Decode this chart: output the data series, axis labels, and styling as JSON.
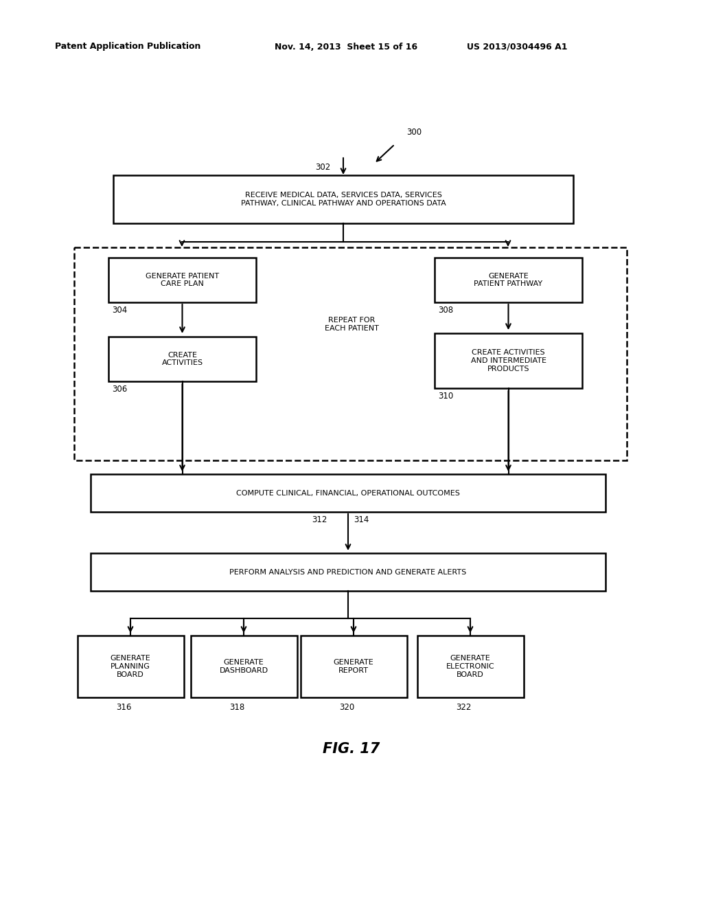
{
  "bg_color": "#ffffff",
  "header_line1": "Patent Application Publication",
  "header_line2": "Nov. 14, 2013  Sheet 15 of 16",
  "header_line3": "US 2013/0304496 A1",
  "fig_label": "FIG. 17",
  "label_300": "300",
  "label_302": "302",
  "label_304": "304",
  "label_306": "306",
  "label_308": "308",
  "label_310": "310",
  "label_312": "312",
  "label_314": "314",
  "label_316": "316",
  "label_318": "318",
  "label_320": "320",
  "label_322": "322",
  "box_302_text": "RECEIVE MEDICAL DATA, SERVICES DATA, SERVICES\nPATHWAY, CLINICAL PATHWAY AND OPERATIONS DATA",
  "box_left_top_text": "GENERATE PATIENT\nCARE PLAN",
  "box_304_text": "CREATE\nACTIVITIES",
  "box_right_top_text": "GENERATE\nPATIENT PATHWAY",
  "box_308_text": "CREATE ACTIVITIES\nAND INTERMEDIATE\nPRODUCTS",
  "box_compute_text": "COMPUTE CLINICAL, FINANCIAL, OPERATIONAL OUTCOMES",
  "box_perform_text": "PERFORM ANALYSIS AND PREDICTION AND GENERATE ALERTS",
  "repeat_text": "REPEAT FOR\nEACH PATIENT",
  "box_316_text": "GENERATE\nPLANNING\nBOARD",
  "box_318_text": "GENERATE\nDASHBOARD",
  "box_320_text": "GENERATE\nREPORT",
  "box_322_text": "GENERATE\nELECTRONIC\nBOARD",
  "font_size_header": 9,
  "font_size_box": 8.0,
  "font_size_label": 8.5,
  "font_size_fig": 15
}
